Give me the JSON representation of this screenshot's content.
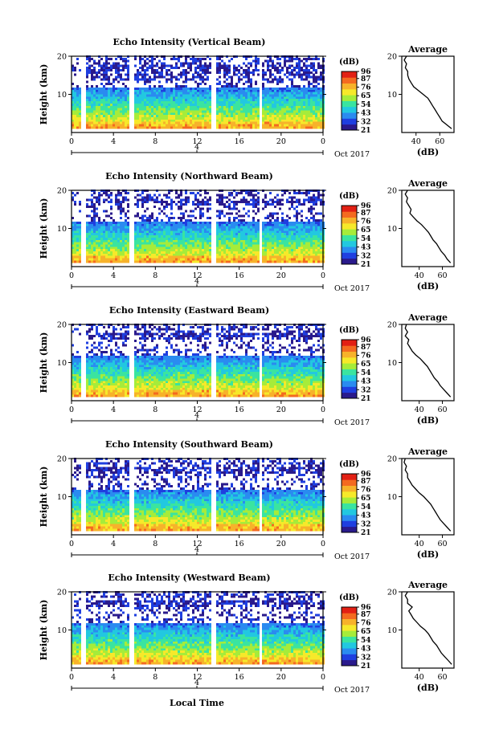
{
  "chart_data": {
    "type": "heatmap",
    "colorbar": {
      "unit": "(dB)",
      "ticks": [
        96,
        87,
        76,
        65,
        54,
        43,
        32,
        21
      ],
      "range": [
        21,
        96
      ],
      "colors": [
        "#2a1a8c",
        "#1f3fe0",
        "#2a8bf0",
        "#22c8e0",
        "#3ae4a0",
        "#a6ec3a",
        "#f6e92a",
        "#f7b22a",
        "#f46a20",
        "#e22014"
      ]
    },
    "x": {
      "ticks": [
        "0",
        "4",
        "8",
        "12",
        "16",
        "20",
        "0"
      ],
      "range": [
        0,
        24
      ],
      "date_ticks": [
        "4"
      ],
      "month_label": "Oct 2017",
      "label": "Local Time"
    },
    "y": {
      "label": "Height (km)",
      "ticks": [
        10,
        20
      ],
      "range": [
        0,
        20
      ]
    },
    "data_gaps_hours": [
      [
        0.7,
        1.2
      ],
      [
        5.5,
        5.9
      ],
      [
        13.3,
        13.7
      ],
      [
        17.8,
        18.1
      ]
    ],
    "avg_profile_heights_km": [
      1,
      2,
      3,
      4,
      5,
      6,
      7,
      8,
      9,
      10,
      11,
      12,
      13,
      14,
      15,
      16,
      17,
      18,
      19,
      20
    ],
    "panels": [
      {
        "title": "Echo Intensity (Vertical Beam)",
        "avg": {
          "title": "Average",
          "xlabel": "(dB)",
          "xticks": [
            40,
            60
          ],
          "xlim": [
            28,
            72
          ],
          "values": [
            70,
            66,
            62,
            60,
            58,
            56,
            54,
            52,
            50,
            46,
            42,
            38,
            36,
            34,
            33,
            33,
            31,
            32,
            30,
            32
          ]
        }
      },
      {
        "title": "Echo Intensity (Northward Beam)",
        "avg": {
          "title": "Average",
          "xlabel": "(dB)",
          "xticks": [
            40,
            60
          ],
          "xlim": [
            25,
            70
          ],
          "values": [
            67,
            64,
            62,
            59,
            57,
            55,
            52,
            50,
            48,
            45,
            42,
            38,
            35,
            32,
            33,
            31,
            29,
            30,
            28,
            30
          ]
        }
      },
      {
        "title": "Echo Intensity (Eastward Beam)",
        "avg": {
          "title": "Average",
          "xlabel": "(dB)",
          "xticks": [
            40,
            60
          ],
          "xlim": [
            25,
            70
          ],
          "values": [
            67,
            64,
            61,
            58,
            56,
            53,
            51,
            49,
            47,
            44,
            41,
            37,
            34,
            32,
            30,
            31,
            28,
            30,
            28,
            29
          ]
        }
      },
      {
        "title": "Echo Intensity (Southward Beam)",
        "avg": {
          "title": "Average",
          "xlabel": "(dB)",
          "xticks": [
            40,
            60
          ],
          "xlim": [
            25,
            70
          ],
          "values": [
            67,
            64,
            61,
            58,
            56,
            54,
            52,
            50,
            47,
            44,
            40,
            37,
            34,
            32,
            30,
            30,
            28,
            29,
            27,
            28
          ]
        }
      },
      {
        "title": "Echo Intensity (Westward Beam)",
        "avg": {
          "title": "Average",
          "xlabel": "(dB)",
          "xticks": [
            40,
            60
          ],
          "xlim": [
            25,
            70
          ],
          "values": [
            68,
            65,
            62,
            59,
            57,
            55,
            52,
            50,
            48,
            45,
            41,
            38,
            35,
            33,
            31,
            34,
            30,
            30,
            28,
            30
          ]
        }
      }
    ]
  }
}
